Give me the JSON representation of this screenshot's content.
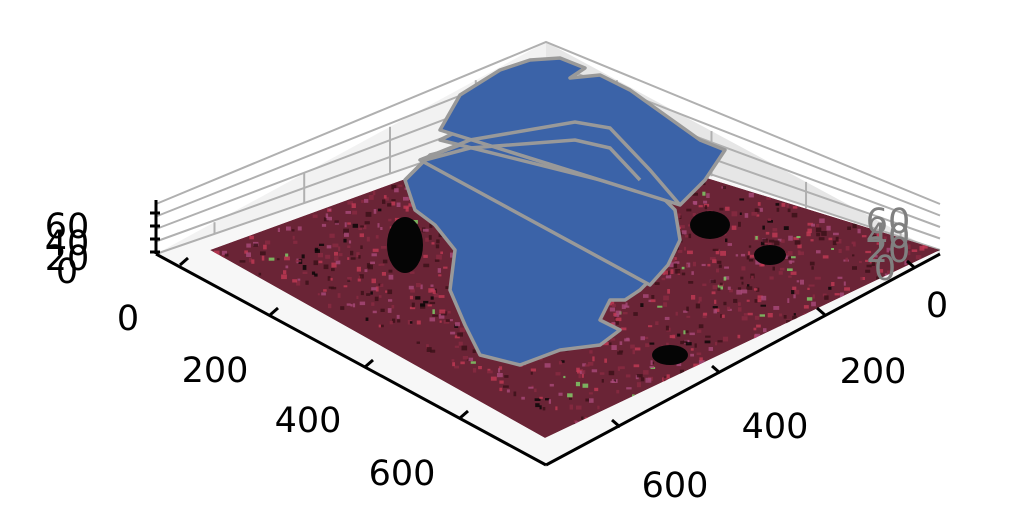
{
  "chart_data": {
    "type": "3d-surface-with-polygons",
    "title": "",
    "xlabel": "",
    "ylabel": "",
    "zlabel": "",
    "grid": true,
    "axes": {
      "x": {
        "ticks": [
          0,
          200,
          400,
          600
        ],
        "tick_labels": [
          "0",
          "200",
          "400",
          "600"
        ],
        "lim": [
          0,
          700
        ]
      },
      "y": {
        "ticks": [
          0,
          200,
          400,
          600
        ],
        "tick_labels": [
          "0",
          "200",
          "400",
          "600"
        ],
        "lim": [
          0,
          700
        ]
      },
      "z": {
        "ticks": [
          0,
          20,
          40,
          60
        ],
        "tick_labels": [
          "0",
          "20",
          "40",
          "60"
        ],
        "lim": [
          0,
          70
        ]
      }
    },
    "floor_image": {
      "description": "fluorescence microscopy tissue tile",
      "base_color": "#6a2436",
      "accent_colors": [
        "#c23a55",
        "#8a2b42",
        "#3a1018",
        "#a94a7a",
        "#7fd46a",
        "#050505"
      ]
    },
    "polygon_stack": {
      "fill_color": "#3b63a8",
      "edge_color": "#999999",
      "layers": [
        {
          "z": 0
        },
        {
          "z": 20
        },
        {
          "z": 40
        },
        {
          "z": 60
        }
      ]
    }
  }
}
